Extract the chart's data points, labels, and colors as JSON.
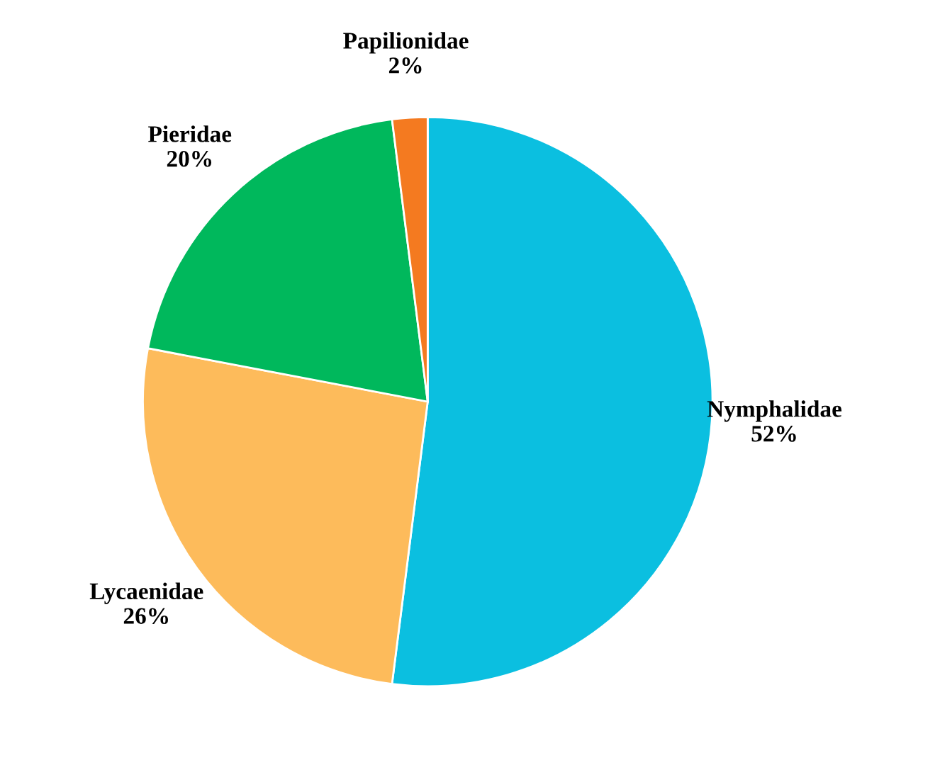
{
  "chart_data": {
    "type": "pie",
    "categories": [
      "Nymphalidae",
      "Lycaenidae",
      "Pieridae",
      "Papilionidae"
    ],
    "values": [
      52,
      26,
      20,
      2
    ],
    "value_labels": [
      "52%",
      "26%",
      "20%",
      "2%"
    ],
    "colors": [
      "#0bbfe0",
      "#fdbb5b",
      "#00b85c",
      "#f47a20"
    ],
    "legend": false
  }
}
